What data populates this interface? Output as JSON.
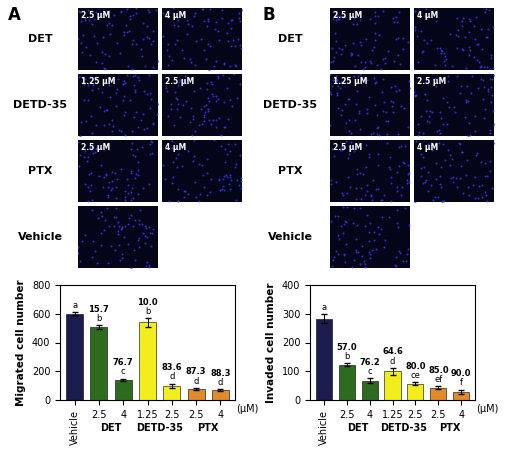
{
  "panel_labels": [
    "A",
    "B"
  ],
  "image_grids": [
    {
      "rows": [
        {
          "name": "DET",
          "images": [
            "2.5 μM",
            "4 μM"
          ]
        },
        {
          "name": "DETD-35",
          "images": [
            "1.25 μM",
            "2.5 μM"
          ]
        },
        {
          "name": "PTX",
          "images": [
            "2.5 μM",
            "4 μM"
          ]
        },
        {
          "name": "Vehicle",
          "images": [
            null
          ]
        }
      ]
    },
    {
      "rows": [
        {
          "name": "DET",
          "images": [
            "2.5 μM",
            "4 μM"
          ]
        },
        {
          "name": "DETD-35",
          "images": [
            "1.25 μM",
            "2.5 μM"
          ]
        },
        {
          "name": "PTX",
          "images": [
            "2.5 μM",
            "4 μM"
          ]
        },
        {
          "name": "Vehicle",
          "images": [
            null
          ]
        }
      ]
    }
  ],
  "chart_data": [
    {
      "type": "bar",
      "y_label": "Migrated cell number",
      "categories": [
        "Vehicle",
        "2.5",
        "4",
        "1.25",
        "2.5",
        "2.5",
        "4"
      ],
      "category_groups": [
        null,
        "DET",
        "DET",
        "DETD-35",
        "DETD-35",
        "PTX",
        "PTX"
      ],
      "unit_label": "(μM)",
      "values": [
        600,
        506,
        140,
        540,
        98,
        76,
        70
      ],
      "errors": [
        10,
        15,
        8,
        30,
        15,
        8,
        5
      ],
      "colors": [
        "#1b1b4d",
        "#2e6b1f",
        "#2e6b1f",
        "#f2ee1e",
        "#f2ee1e",
        "#e08a2c",
        "#e08a2c"
      ],
      "letters": [
        "a",
        "b",
        "c",
        "b",
        "d",
        "d",
        "d"
      ],
      "inhibition_labels": [
        null,
        "15.7",
        "76.7",
        "10.0",
        "83.6",
        "87.3",
        "88.3"
      ],
      "ylim": [
        0,
        800
      ],
      "yticks": [
        0,
        200,
        400,
        600,
        800
      ]
    },
    {
      "type": "bar",
      "y_label": "Invaded cell number",
      "categories": [
        "Vehicle",
        "2.5",
        "4",
        "1.25",
        "2.5",
        "2.5",
        "4"
      ],
      "category_groups": [
        null,
        "DET",
        "DET",
        "DETD-35",
        "DETD-35",
        "PTX",
        "PTX"
      ],
      "unit_label": "(μM)",
      "values": [
        283,
        122,
        67,
        100,
        57,
        42,
        28
      ],
      "errors": [
        15,
        5,
        8,
        12,
        5,
        5,
        8
      ],
      "colors": [
        "#1b1b4d",
        "#2e6b1f",
        "#2e6b1f",
        "#f2ee1e",
        "#f2ee1e",
        "#e08a2c",
        "#e08a2c"
      ],
      "letters": [
        "a",
        "b",
        "c",
        "d",
        "ce",
        "ef",
        "f"
      ],
      "inhibition_labels": [
        null,
        "57.0",
        "76.2",
        "64.6",
        "80.0",
        "85.0",
        "90.0"
      ],
      "ylim": [
        0,
        400
      ],
      "yticks": [
        0,
        100,
        200,
        300,
        400
      ]
    }
  ]
}
